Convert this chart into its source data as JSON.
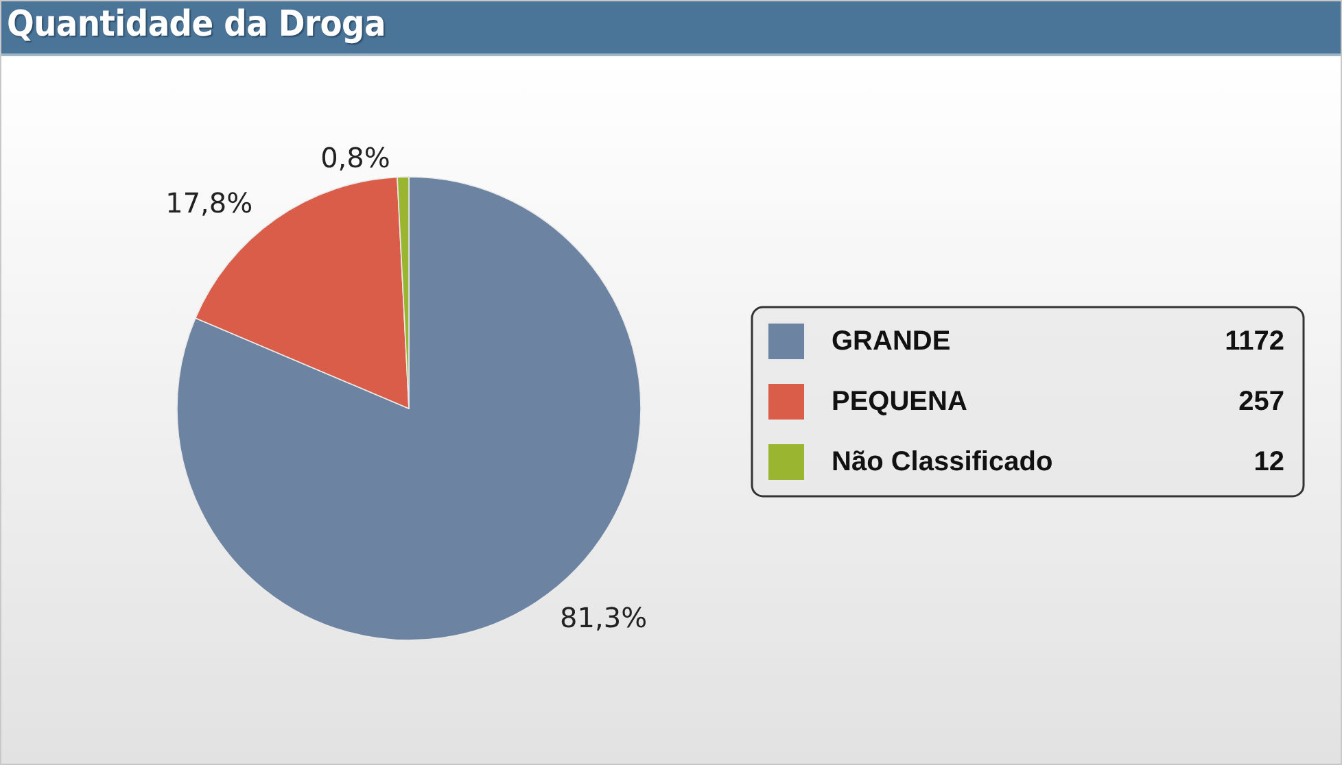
{
  "chart_data": {
    "type": "pie",
    "title": "Quantidade da Droga",
    "categories": [
      "GRANDE",
      "PEQUENA",
      "Não Classificado"
    ],
    "values": [
      81.3,
      17.8,
      0.8
    ],
    "colors": [
      "#6c83a2",
      "#d95d48",
      "#9ab52f"
    ],
    "value_labels": [
      "81,3%",
      "17,8%",
      "0,8%"
    ],
    "annotations": [
      "1172",
      "257",
      "12"
    ],
    "legend": "right"
  }
}
